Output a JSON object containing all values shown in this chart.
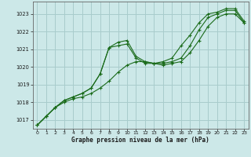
{
  "title": "Graphe pression niveau de la mer (hPa)",
  "bg_color": "#cce8e8",
  "grid_color": "#a8cccc",
  "line_color": "#1a6b1a",
  "marker_color": "#1a6b1a",
  "xlim": [
    -0.5,
    23.5
  ],
  "ylim": [
    1016.5,
    1023.7
  ],
  "yticks": [
    1017,
    1018,
    1019,
    1020,
    1021,
    1022,
    1023
  ],
  "xticks": [
    0,
    1,
    2,
    3,
    4,
    5,
    6,
    7,
    8,
    9,
    10,
    11,
    12,
    13,
    14,
    15,
    16,
    17,
    18,
    19,
    20,
    21,
    22,
    23
  ],
  "series1_x": [
    0,
    1,
    2,
    3,
    4,
    5,
    6,
    7,
    8,
    9,
    10,
    11,
    12,
    13,
    14,
    15,
    16,
    17,
    18,
    19,
    20,
    21,
    22,
    23
  ],
  "series1_y": [
    1016.7,
    1017.2,
    1017.7,
    1018.0,
    1018.2,
    1018.3,
    1018.5,
    1018.8,
    1019.2,
    1019.7,
    1020.1,
    1020.3,
    1020.3,
    1020.2,
    1020.1,
    1020.2,
    1020.3,
    1020.8,
    1021.5,
    1022.3,
    1022.8,
    1023.0,
    1023.0,
    1022.5
  ],
  "series2_x": [
    0,
    1,
    2,
    3,
    4,
    5,
    6,
    7,
    8,
    9,
    10,
    11,
    12,
    13,
    14,
    15,
    16,
    17,
    18,
    19,
    20,
    21,
    22,
    23
  ],
  "series2_y": [
    1016.7,
    1017.2,
    1017.7,
    1018.1,
    1018.3,
    1018.5,
    1018.8,
    1019.6,
    1021.1,
    1021.2,
    1021.3,
    1020.5,
    1020.2,
    1020.2,
    1020.2,
    1020.3,
    1020.5,
    1021.2,
    1022.1,
    1022.8,
    1023.0,
    1023.2,
    1023.2,
    1022.5
  ],
  "series3_x": [
    0,
    1,
    2,
    3,
    4,
    5,
    6,
    7,
    8,
    9,
    10,
    11,
    12,
    13,
    14,
    15,
    16,
    17,
    18,
    19,
    20,
    21,
    22,
    23
  ],
  "series3_y": [
    1016.7,
    1017.2,
    1017.7,
    1018.1,
    1018.3,
    1018.5,
    1018.8,
    1019.6,
    1021.1,
    1021.4,
    1021.5,
    1020.6,
    1020.3,
    1020.2,
    1020.3,
    1020.5,
    1021.2,
    1021.8,
    1022.5,
    1023.0,
    1023.1,
    1023.3,
    1023.3,
    1022.6
  ]
}
